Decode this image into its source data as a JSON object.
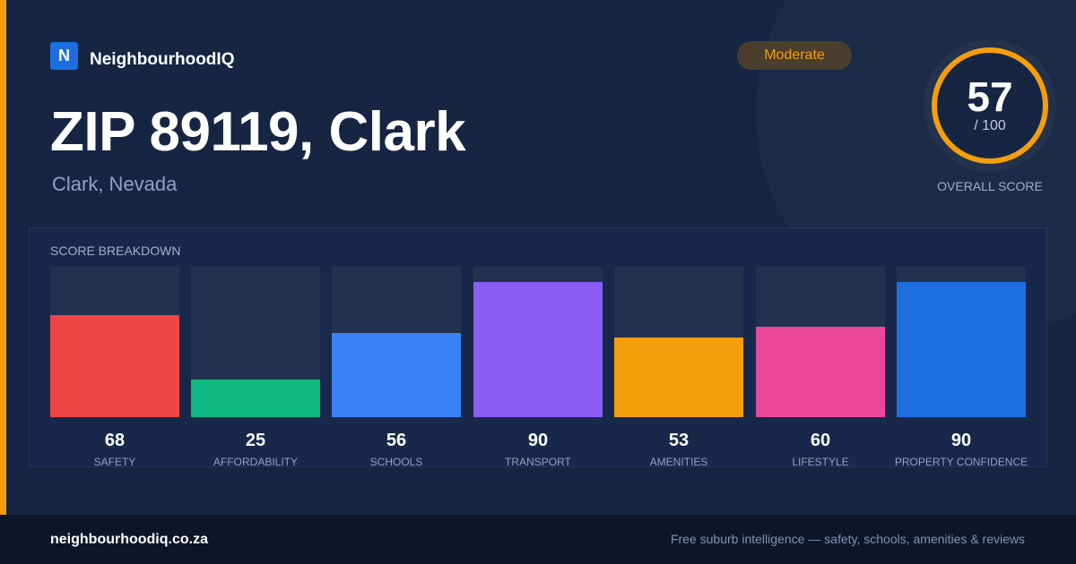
{
  "brand": {
    "logo_letter": "N",
    "name": "NeighbourhoodIQ"
  },
  "title": "ZIP 89119, Clark",
  "subtitle": "Clark, Nevada",
  "rating_badge": "Moderate",
  "overall": {
    "score": "57",
    "max": "/ 100",
    "caption": "OVERALL SCORE",
    "fraction": 0.57
  },
  "breakdown": {
    "title": "SCORE BREAKDOWN",
    "items": [
      {
        "value": "68",
        "label": "SAFETY",
        "color": "#ef4444"
      },
      {
        "value": "25",
        "label": "AFFORDABILITY",
        "color": "#10b981"
      },
      {
        "value": "56",
        "label": "SCHOOLS",
        "color": "#3b82f6"
      },
      {
        "value": "90",
        "label": "TRANSPORT",
        "color": "#8b5cf6"
      },
      {
        "value": "53",
        "label": "AMENITIES",
        "color": "#f59e0b"
      },
      {
        "value": "60",
        "label": "LIFESTYLE",
        "color": "#ec4899"
      },
      {
        "value": "90",
        "label": "PROPERTY CONFIDENCE",
        "color": "#1d6fe0"
      }
    ]
  },
  "footer": {
    "url": "neighbourhoodiq.co.za",
    "tagline": "Free suburb intelligence — safety, schools, amenities & reviews"
  },
  "colors": {
    "accent": "#f59e0b",
    "brand": "#1d6fe0",
    "background": "#152542"
  }
}
